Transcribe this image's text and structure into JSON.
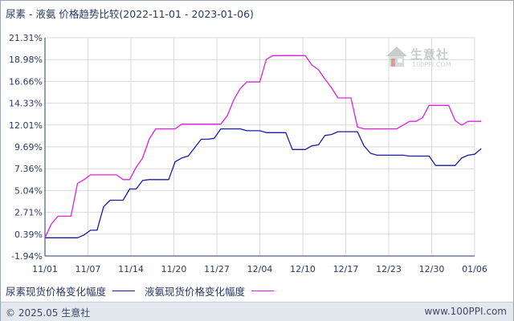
{
  "title": "尿素 - 液氨 价格趋势比较(2022-11-01 - 2023-01-06)",
  "watermark": {
    "text": "生意社",
    "sub": "100PPI.COM"
  },
  "footer": {
    "left": "© 2025.05 生意社",
    "right": "www.100PPI.com"
  },
  "colors": {
    "axis": "#2a3a66",
    "grid": "#d9d9d9",
    "urea": "#1a1aa8",
    "ammonia": "#e020e0"
  },
  "chart_data": {
    "type": "line",
    "title": "尿素 - 液氨 价格趋势比较(2022-11-01 - 2023-01-06)",
    "xlabel": "",
    "ylabel": "",
    "x_tick_labels": [
      "11/01",
      "11/07",
      "11/14",
      "11/20",
      "11/27",
      "12/04",
      "12/10",
      "12/17",
      "12/23",
      "12/30",
      "01/06"
    ],
    "y_tick_labels": [
      "21.31%",
      "18.98%",
      "16.66%",
      "14.33%",
      "12.01%",
      "9.69%",
      "7.36%",
      "5.04%",
      "2.71%",
      "0.39%",
      "-1.94%"
    ],
    "ylim": [
      -1.94,
      21.31
    ],
    "x_range": [
      "11/01",
      "01/06"
    ],
    "x_days": 66,
    "grid": true,
    "legend_position": "bottom",
    "series": [
      {
        "name": "尿素现货价格变化幅度",
        "color": "#1a1aa8",
        "points": [
          [
            0,
            0
          ],
          [
            5,
            0
          ],
          [
            6,
            0.3
          ],
          [
            7,
            0.8
          ],
          [
            8,
            0.8
          ],
          [
            9,
            3.3
          ],
          [
            10,
            4.0
          ],
          [
            11,
            4.0
          ],
          [
            12,
            4.0
          ],
          [
            13,
            5.2
          ],
          [
            14,
            5.2
          ],
          [
            15,
            6.1
          ],
          [
            16,
            6.2
          ],
          [
            17,
            6.2
          ],
          [
            18,
            6.2
          ],
          [
            19,
            6.2
          ],
          [
            20,
            8.1
          ],
          [
            21,
            8.5
          ],
          [
            22,
            8.7
          ],
          [
            23,
            9.6
          ],
          [
            24,
            10.5
          ],
          [
            25,
            10.5
          ],
          [
            26,
            10.6
          ],
          [
            27,
            11.6
          ],
          [
            28,
            11.6
          ],
          [
            29,
            11.6
          ],
          [
            30,
            11.6
          ],
          [
            31,
            11.4
          ],
          [
            32,
            11.4
          ],
          [
            33,
            11.4
          ],
          [
            34,
            11.2
          ],
          [
            35,
            11.2
          ],
          [
            36,
            11.2
          ],
          [
            37,
            11.2
          ],
          [
            38,
            9.4
          ],
          [
            39,
            9.4
          ],
          [
            40,
            9.4
          ],
          [
            41,
            9.8
          ],
          [
            42,
            9.9
          ],
          [
            43,
            10.9
          ],
          [
            44,
            11.0
          ],
          [
            45,
            11.3
          ],
          [
            46,
            11.3
          ],
          [
            47,
            11.3
          ],
          [
            48,
            11.3
          ],
          [
            49,
            9.8
          ],
          [
            50,
            9.0
          ],
          [
            51,
            8.8
          ],
          [
            52,
            8.8
          ],
          [
            53,
            8.8
          ],
          [
            54,
            8.8
          ],
          [
            55,
            8.8
          ],
          [
            56,
            8.7
          ],
          [
            57,
            8.7
          ],
          [
            58,
            8.7
          ],
          [
            59,
            8.7
          ],
          [
            60,
            7.7
          ],
          [
            61,
            7.7
          ],
          [
            62,
            7.7
          ],
          [
            63,
            7.7
          ],
          [
            64,
            8.5
          ],
          [
            65,
            8.8
          ],
          [
            66,
            8.9
          ],
          [
            67,
            9.5
          ]
        ]
      },
      {
        "name": "液氨现货价格变化幅度",
        "color": "#e020e0",
        "points": [
          [
            0,
            0
          ],
          [
            1,
            1.5
          ],
          [
            2,
            2.3
          ],
          [
            3,
            2.3
          ],
          [
            4,
            2.3
          ],
          [
            5,
            5.8
          ],
          [
            6,
            6.2
          ],
          [
            7,
            6.7
          ],
          [
            8,
            6.7
          ],
          [
            9,
            6.7
          ],
          [
            10,
            6.7
          ],
          [
            11,
            6.7
          ],
          [
            12,
            6.2
          ],
          [
            13,
            6.2
          ],
          [
            14,
            7.5
          ],
          [
            15,
            8.5
          ],
          [
            16,
            10.5
          ],
          [
            17,
            11.6
          ],
          [
            18,
            11.6
          ],
          [
            19,
            11.6
          ],
          [
            20,
            11.6
          ],
          [
            21,
            12.1
          ],
          [
            22,
            12.1
          ],
          [
            23,
            12.1
          ],
          [
            24,
            12.1
          ],
          [
            25,
            12.1
          ],
          [
            26,
            12.1
          ],
          [
            27,
            12.1
          ],
          [
            28,
            13.0
          ],
          [
            29,
            14.7
          ],
          [
            30,
            15.9
          ],
          [
            31,
            16.6
          ],
          [
            32,
            16.6
          ],
          [
            33,
            16.6
          ],
          [
            34,
            19.0
          ],
          [
            35,
            19.4
          ],
          [
            36,
            19.4
          ],
          [
            37,
            19.4
          ],
          [
            38,
            19.4
          ],
          [
            39,
            19.4
          ],
          [
            40,
            19.4
          ],
          [
            41,
            18.4
          ],
          [
            42,
            17.9
          ],
          [
            43,
            16.9
          ],
          [
            44,
            16.0
          ],
          [
            45,
            14.9
          ],
          [
            46,
            14.9
          ],
          [
            47,
            14.9
          ],
          [
            48,
            11.8
          ],
          [
            49,
            11.6
          ],
          [
            50,
            11.6
          ],
          [
            51,
            11.6
          ],
          [
            52,
            11.6
          ],
          [
            53,
            11.6
          ],
          [
            54,
            11.6
          ],
          [
            55,
            12.0
          ],
          [
            56,
            12.4
          ],
          [
            57,
            12.4
          ],
          [
            58,
            12.8
          ],
          [
            59,
            14.1
          ],
          [
            60,
            14.1
          ],
          [
            61,
            14.1
          ],
          [
            62,
            14.1
          ],
          [
            63,
            12.5
          ],
          [
            64,
            12.0
          ],
          [
            65,
            12.4
          ],
          [
            66,
            12.4
          ],
          [
            67,
            12.4
          ]
        ]
      }
    ]
  }
}
